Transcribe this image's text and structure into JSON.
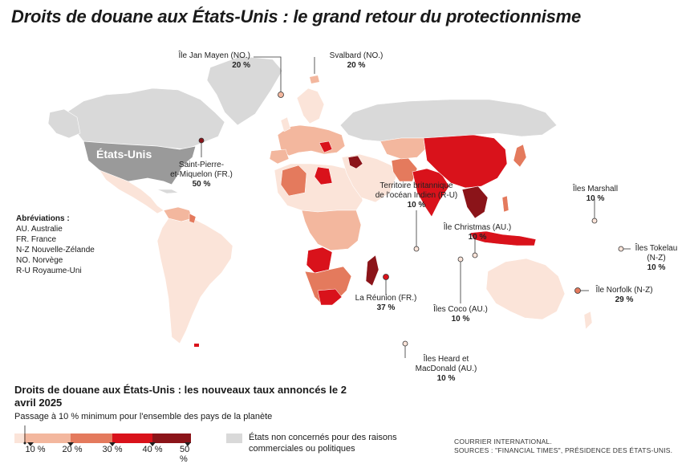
{
  "title": "Droits de douane aux États-Unis : le grand retour du protectionnisme",
  "usa_label": "États-Unis",
  "colors": {
    "rate_10": "#fbe4d9",
    "rate_20": "#f3b79e",
    "rate_30": "#e47a5d",
    "rate_40": "#d9121b",
    "rate_50": "#8b1419",
    "not_concerned": "#d9d9d9",
    "usa": "#9a9a9a",
    "ocean": "#ffffff"
  },
  "annotations": {
    "jan_mayen": {
      "name": "Île Jan Mayen (NO.)",
      "rate": "20 %"
    },
    "svalbard": {
      "name": "Svalbard (NO.)",
      "rate": "20 %"
    },
    "saint_pierre": {
      "name1": "Saint-Pierre-",
      "name2": "et-Miquelon (FR.)",
      "rate": "50 %"
    },
    "biot": {
      "name1": "Territoire britannique",
      "name2": "de l'océan Indien (R-U)",
      "rate": "10 %"
    },
    "christmas": {
      "name": "Île Christmas (AU.)",
      "rate": "10 %"
    },
    "marshall": {
      "name": "Îles Marshall",
      "rate": "10 %"
    },
    "tokelau": {
      "name1": "Îles Tokelau",
      "name2": "(N-Z)",
      "rate": "10 %"
    },
    "norfolk": {
      "name": "Île Norfolk (N-Z)",
      "rate": "29 %"
    },
    "coco": {
      "name": "Îles Coco (AU.)",
      "rate": "10 %"
    },
    "reunion": {
      "name": "La Réunion (FR.)",
      "rate": "37 %"
    },
    "heard": {
      "name1": "Îles Heard et",
      "name2": "MacDonald (AU.)",
      "rate": "10 %"
    }
  },
  "abbreviations": {
    "heading": "Abréviations :",
    "items": [
      "AU. Australie",
      "FR. France",
      "N-Z Nouvelle-Zélande",
      "NO. Norvège",
      "R-U Royaume-Uni"
    ]
  },
  "legend": {
    "title": "Droits de douane aux États-Unis : les nouveaux taux annoncés le 2 avril 2025",
    "subtitle": "Passage à 10 % minimum pour l'ensemble des pays de la planète",
    "ticks": [
      "10 %",
      "20 %",
      "30 %",
      "40 %",
      "50 %"
    ],
    "not_concerned": "États non concernés pour des raisons commerciales ou politiques"
  },
  "credit": {
    "line1": "COURRIER INTERNATIONAL.",
    "line2": "SOURCES : \"FINANCIAL TIMES\", PRÉSIDENCE DES ÉTATS-UNIS."
  }
}
